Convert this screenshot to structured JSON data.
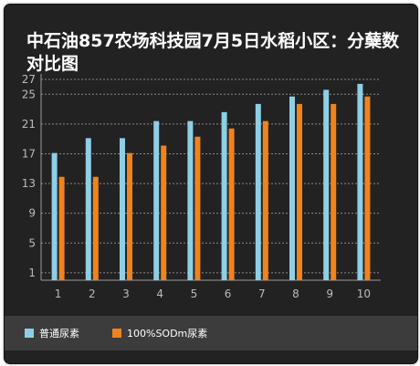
{
  "chart_data": {
    "type": "bar",
    "title": "中石油857农场科技园7月5日水稻小区：分蘖数对比图",
    "xlabel": "",
    "ylabel": "",
    "categories": [
      "1",
      "2",
      "3",
      "4",
      "5",
      "6",
      "7",
      "8",
      "9",
      "10"
    ],
    "yticks": [
      1,
      5,
      9,
      13,
      17,
      21,
      25,
      27
    ],
    "ylim": [
      0,
      27
    ],
    "grid": true,
    "legend_position": "bottom",
    "series": [
      {
        "name": "普通尿素",
        "color": "#8ecfe6",
        "values": [
          17.1,
          19.1,
          19.1,
          21.4,
          21.4,
          22.6,
          23.7,
          24.7,
          25.6,
          26.4
        ]
      },
      {
        "name": "100%SODm尿素",
        "color": "#f0831e",
        "values": [
          13.9,
          13.9,
          17.1,
          18.1,
          19.3,
          20.4,
          21.4,
          23.7,
          23.7,
          24.7
        ]
      }
    ]
  }
}
